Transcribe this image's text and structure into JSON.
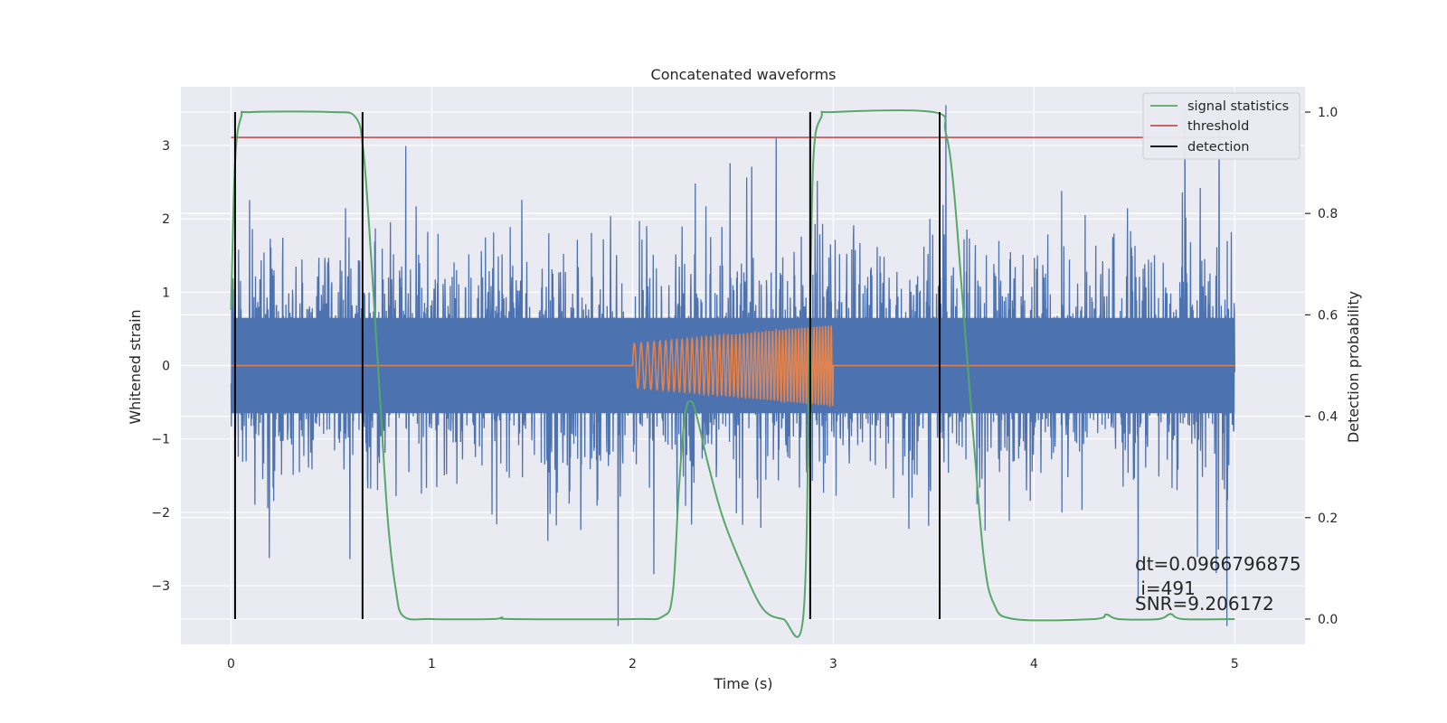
{
  "chart_data": {
    "type": "line",
    "title": "Concatenated waveforms",
    "xlabel": "Time (s)",
    "ylabel": "Whitened strain",
    "ylabel_right": "Detection probability",
    "xlim": [
      -0.25,
      5.35
    ],
    "ylim": [
      -3.8,
      3.8
    ],
    "ylim_right": [
      -0.05,
      1.05
    ],
    "xticks": [
      0,
      1,
      2,
      3,
      4,
      5
    ],
    "xtick_labels": [
      "0",
      "1",
      "2",
      "3",
      "4",
      "5"
    ],
    "yticks": [
      -3,
      -2,
      -1,
      0,
      1,
      2,
      3
    ],
    "ytick_labels": [
      "−3",
      "−2",
      "−1",
      "0",
      "1",
      "2",
      "3"
    ],
    "yticks_right": [
      0.0,
      0.2,
      0.4,
      0.6,
      0.8,
      1.0
    ],
    "ytick_labels_right": [
      "0.0",
      "0.2",
      "0.4",
      "0.6",
      "0.8",
      "1.0"
    ],
    "grid": true,
    "legend_position": "top-right",
    "colors": {
      "background": "#eaeaf2",
      "grid": "#ffffff",
      "strain": "#4c72b0",
      "injection": "#dd8452",
      "signal_statistics": "#55a868",
      "threshold": "#c44e52",
      "detection": "#000000"
    },
    "legend": [
      {
        "label": "signal statistics",
        "color": "#55a868"
      },
      {
        "label": "threshold",
        "color": "#c44e52"
      },
      {
        "label": "detection",
        "color": "#000000"
      }
    ],
    "series": [
      {
        "key": "strain",
        "axis": "left",
        "description_values": {
          "t_start": 0,
          "t_end": 5,
          "core_amplitude": 0.65,
          "max_excursion": 3.55
        }
      },
      {
        "key": "injection",
        "axis": "left",
        "segment": [
          2.0,
          3.0
        ],
        "amplitude_start": 0.3,
        "amplitude_end": 0.55
      },
      {
        "key": "signal_statistics",
        "axis": "right",
        "x": [
          0.0,
          0.02,
          0.05,
          0.1,
          0.5,
          0.62,
          0.66,
          0.7,
          0.74,
          0.78,
          0.82,
          0.86,
          1.0,
          1.3,
          1.35,
          1.4,
          2.0,
          2.15,
          2.2,
          2.23,
          2.26,
          2.29,
          2.32,
          2.38,
          2.45,
          2.55,
          2.65,
          2.75,
          2.85,
          2.88,
          2.9,
          2.94,
          3.0,
          3.5,
          3.56,
          3.6,
          3.65,
          3.7,
          3.75,
          3.8,
          3.9,
          4.3,
          4.36,
          4.42,
          4.62,
          4.68,
          4.74,
          5.0
        ],
        "y": [
          0.61,
          0.9,
          0.99,
          1.0,
          1.0,
          0.99,
          0.92,
          0.7,
          0.45,
          0.2,
          0.06,
          0.005,
          0.0,
          0.0,
          0.003,
          0.0,
          0.0,
          0.005,
          0.05,
          0.25,
          0.4,
          0.43,
          0.4,
          0.3,
          0.2,
          0.1,
          0.02,
          0.0,
          0.003,
          0.5,
          0.9,
          0.99,
          1.0,
          1.0,
          0.96,
          0.85,
          0.6,
          0.35,
          0.12,
          0.03,
          0.0,
          0.0,
          0.009,
          0.0,
          0.0,
          0.01,
          0.0,
          0.0
        ]
      },
      {
        "key": "threshold",
        "axis": "right",
        "x": [
          0.0,
          5.0
        ],
        "y": [
          0.95,
          0.95
        ]
      }
    ],
    "detections_x": [
      0.02,
      0.655,
      2.885,
      3.53
    ],
    "detection_y_range": [
      0.0,
      1.0
    ],
    "annotations": [
      "dt=0.0966796875",
      " i=491",
      "SNR=9.206172"
    ]
  }
}
